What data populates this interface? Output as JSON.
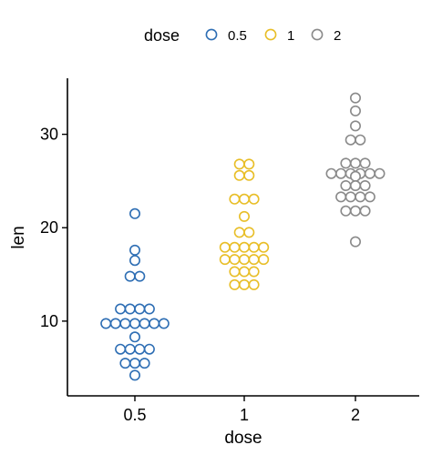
{
  "chart_data": {
    "type": "scatter",
    "subtype": "dotplot",
    "title": "",
    "xlabel": "dose",
    "ylabel": "len",
    "categories": [
      "0.5",
      "1",
      "2"
    ],
    "ylim": [
      2,
      36
    ],
    "yticks": [
      10,
      20,
      30
    ],
    "grid": false,
    "legend": {
      "title": "dose",
      "position": "top",
      "entries": [
        "0.5",
        "1",
        "2"
      ]
    },
    "colors": {
      "0.5": "#2E6EB4",
      "1": "#E8BE27",
      "2": "#8A8A8A"
    },
    "series": [
      {
        "name": "0.5",
        "values": [
          4.2,
          5.5,
          5.5,
          5.5,
          7.0,
          7.0,
          7.0,
          7.0,
          8.3,
          9.7,
          9.7,
          9.7,
          9.7,
          9.7,
          9.7,
          10.0,
          11.3,
          11.3,
          11.3,
          11.3,
          14.8,
          14.8,
          16.5,
          17.6,
          21.5
        ]
      },
      {
        "name": "1",
        "values": [
          13.9,
          13.9,
          13.9,
          15.3,
          15.3,
          15.3,
          16.6,
          16.6,
          16.6,
          16.6,
          16.6,
          17.9,
          17.9,
          17.9,
          17.9,
          17.9,
          19.5,
          19.5,
          21.2,
          22.6,
          23.3,
          23.3,
          25.6,
          25.6,
          26.8,
          26.8
        ]
      },
      {
        "name": "2",
        "values": [
          18.5,
          21.8,
          21.8,
          21.8,
          23.3,
          23.3,
          23.3,
          23.3,
          24.5,
          24.5,
          24.5,
          25.5,
          25.8,
          25.8,
          25.8,
          25.8,
          25.8,
          25.8,
          26.9,
          26.9,
          26.9,
          29.4,
          29.4,
          30.9,
          32.5,
          33.9
        ]
      }
    ]
  }
}
